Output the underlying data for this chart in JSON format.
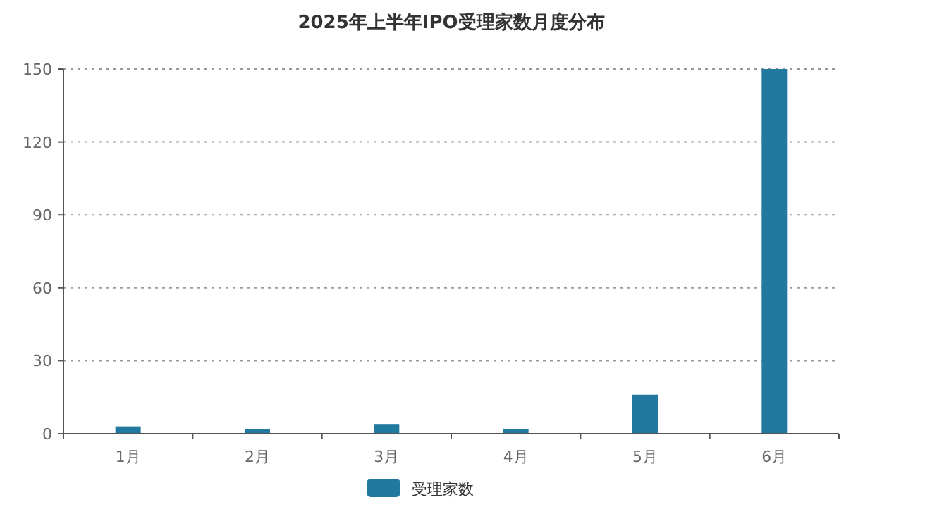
{
  "chart_data": {
    "type": "bar",
    "title": "2025年上半年IPO受理家数月度分布",
    "categories": [
      "1月",
      "2月",
      "3月",
      "4月",
      "5月",
      "6月"
    ],
    "series": [
      {
        "name": "受理家数",
        "color": "#21799f",
        "values": [
          3,
          2,
          4,
          2,
          16,
          150
        ]
      }
    ],
    "ylim": [
      0,
      150
    ],
    "yticks": [
      0,
      30,
      60,
      90,
      120,
      150
    ],
    "grid": "y",
    "legend": "bottom"
  }
}
